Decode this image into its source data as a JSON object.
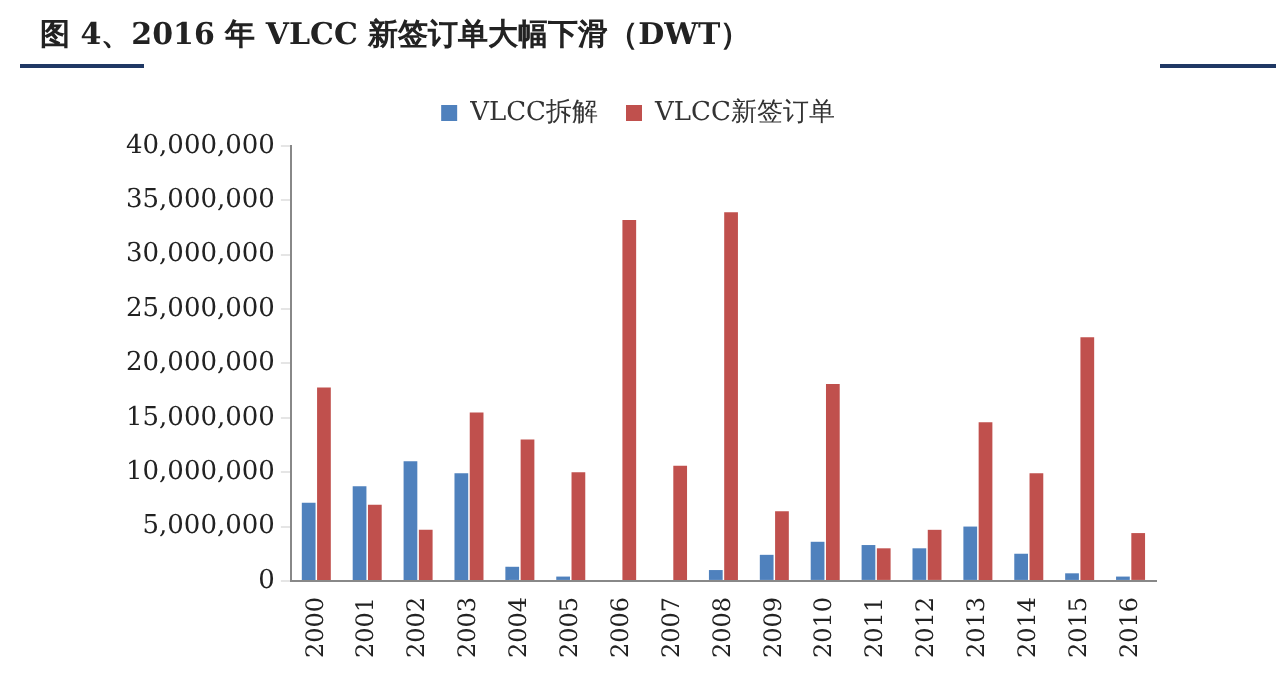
{
  "chart_data": {
    "type": "bar",
    "title": "图 4、2016 年 VLCC 新签订单大幅下滑（DWT）",
    "categories": [
      "2000",
      "2001",
      "2002",
      "2003",
      "2004",
      "2005",
      "2006",
      "2007",
      "2008",
      "2009",
      "2010",
      "2011",
      "2012",
      "2013",
      "2014",
      "2015",
      "2016"
    ],
    "series": [
      {
        "name": "VLCC拆解",
        "color": "#4f81bd",
        "values": [
          7200000,
          8700000,
          11000000,
          9900000,
          1300000,
          400000,
          0,
          0,
          1000000,
          2400000,
          3600000,
          3300000,
          3000000,
          5000000,
          2500000,
          700000,
          400000
        ]
      },
      {
        "name": "VLCC新签订单",
        "color": "#c0504d",
        "values": [
          17800000,
          7000000,
          4700000,
          15500000,
          13000000,
          10000000,
          33200000,
          10600000,
          33900000,
          6400000,
          18100000,
          3000000,
          4700000,
          14600000,
          9900000,
          22400000,
          4400000
        ]
      }
    ],
    "ylim": [
      0,
      40000000
    ],
    "yticks": [
      0,
      {
        "value": 5000000,
        "label": "5,000,000"
      },
      {
        "value": 10000000,
        "label": "10,000,000"
      },
      {
        "value": 15000000,
        "label": "15,000,000"
      },
      {
        "value": 20000000,
        "label": "20,000,000"
      },
      {
        "value": 25000000,
        "label": "25,000,000"
      },
      {
        "value": 30000000,
        "label": "30,000,000"
      },
      {
        "value": 35000000,
        "label": "35,000,000"
      },
      {
        "value": 40000000,
        "label": "40,000,000"
      }
    ],
    "grid": false,
    "legend": "top"
  }
}
